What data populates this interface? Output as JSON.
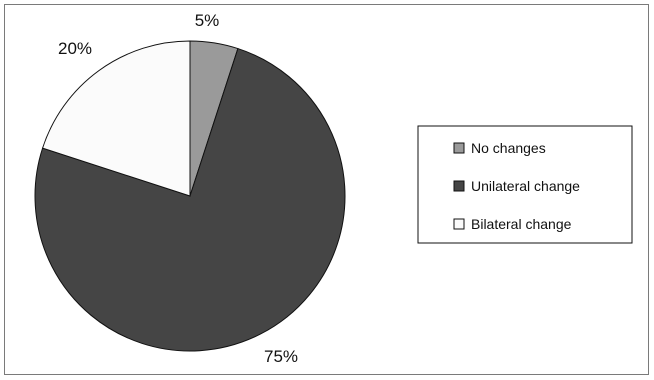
{
  "chart_data": {
    "type": "pie",
    "categories": [
      "No changes",
      "Unilateral change",
      "Bilateral change"
    ],
    "values": [
      5,
      75,
      20
    ],
    "data_labels": [
      "5%",
      "75%",
      "20%"
    ],
    "colors": [
      "#9a9a9a",
      "#454545",
      "#fbfbfb"
    ],
    "unit": "%",
    "legend_position": "right",
    "start_angle": "12 o'clock, clockwise"
  }
}
